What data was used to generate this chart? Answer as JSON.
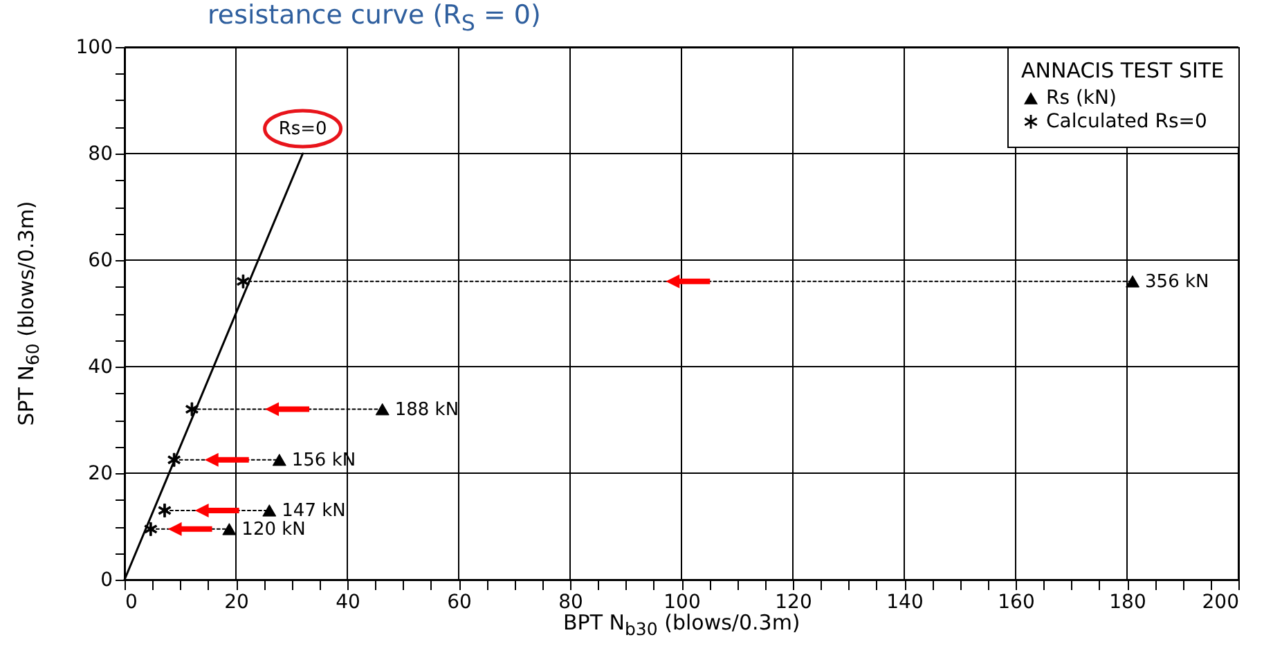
{
  "chart_data": {
    "type": "scatter",
    "title": "resistance curve (R$_{S}$ = 0)",
    "xlabel": "BPT N$_{b30}$ (blows/0.3m)",
    "ylabel": "SPT N$_{60}$ (blows/0.3m)",
    "legend_title": "ANNACIS TEST SITE",
    "xlim": [
      0,
      200
    ],
    "ylim": [
      0,
      100
    ],
    "xticks": [
      0,
      {
        "value": 5,
        "label": null
      },
      {
        "value": 10,
        "label": null
      },
      {
        "value": 15,
        "label": null
      },
      20,
      {
        "value": 25,
        "label": null
      },
      {
        "value": 30,
        "label": null
      },
      {
        "value": 35,
        "label": null
      },
      40,
      {
        "value": 45,
        "label": null
      },
      {
        "value": 50,
        "label": null
      },
      {
        "value": 55,
        "label": null
      },
      60,
      {
        "value": 65,
        "label": null
      },
      {
        "value": 70,
        "label": null
      },
      {
        "value": 75,
        "label": null
      },
      80,
      {
        "value": 85,
        "label": null
      },
      {
        "value": 90,
        "label": null
      },
      {
        "value": 95,
        "label": null
      },
      100,
      {
        "value": 105,
        "label": null
      },
      {
        "value": 110,
        "label": null
      },
      {
        "value": 115,
        "label": null
      },
      120,
      {
        "value": 125,
        "label": null
      },
      {
        "value": 130,
        "label": null
      },
      {
        "value": 135,
        "label": null
      },
      140,
      {
        "value": 145,
        "label": null
      },
      {
        "value": 150,
        "label": null
      },
      {
        "value": 155,
        "label": null
      },
      160,
      {
        "value": 165,
        "label": null
      },
      {
        "value": 170,
        "label": null
      },
      {
        "value": 175,
        "label": null
      },
      180,
      {
        "value": 185,
        "label": null
      },
      {
        "value": 190,
        "label": null
      },
      {
        "value": 195,
        "label": null
      },
      200
    ],
    "yticks": [
      0,
      {
        "value": 5,
        "label": null
      },
      {
        "value": 10,
        "label": null
      },
      {
        "value": 15,
        "label": null
      },
      20,
      {
        "value": 25,
        "label": null
      },
      {
        "value": 30,
        "label": null
      },
      {
        "value": 35,
        "label": null
      },
      40,
      {
        "value": 45,
        "label": null
      },
      {
        "value": 50,
        "label": null
      },
      {
        "value": 55,
        "label": null
      },
      60,
      {
        "value": 65,
        "label": null
      },
      {
        "value": 70,
        "label": null
      },
      {
        "value": 75,
        "label": null
      },
      80,
      {
        "value": 85,
        "label": null
      },
      {
        "value": 90,
        "label": null
      },
      {
        "value": 95,
        "label": null
      },
      100
    ],
    "grid": true,
    "legend": "top right",
    "annotations": [
      {
        "text": "Rs=0",
        "x": 32,
        "y": 80
      },
      {
        "text": "120 kN",
        "x": 18.8,
        "y": 9.5
      },
      {
        "text": "147 kN",
        "x": 26,
        "y": 13
      },
      {
        "text": "156 kN",
        "x": 27.8,
        "y": 22.5
      },
      {
        "text": "188 kN",
        "x": 46.3,
        "y": 32
      },
      {
        "text": "356 kN",
        "x": 181,
        "y": 56
      }
    ],
    "series": [
      {
        "type": "line",
        "color": "#000000",
        "line_style": "solid",
        "x": [
          0,
          32
        ],
        "values": [
          0,
          80
        ]
      },
      {
        "type": "line",
        "color": "#000000",
        "line_style": "dotted",
        "x": [
          4.7,
          18.8
        ],
        "values": [
          9.5,
          9.5
        ]
      },
      {
        "type": "line",
        "color": "#000000",
        "line_style": "dotted",
        "x": [
          7.2,
          26
        ],
        "values": [
          13,
          13
        ]
      },
      {
        "type": "line",
        "color": "#000000",
        "line_style": "dotted",
        "x": [
          8.9,
          27.8
        ],
        "values": [
          22.5,
          22.5
        ]
      },
      {
        "type": "line",
        "color": "#000000",
        "line_style": "dotted",
        "x": [
          12.1,
          46.3
        ],
        "values": [
          32,
          32
        ]
      },
      {
        "type": "line",
        "color": "#000000",
        "line_style": "dotted",
        "x": [
          21.3,
          181
        ],
        "values": [
          56,
          56
        ]
      },
      {
        "name": "Rs (kN)",
        "marker": "triangle",
        "color": "#000000",
        "x": [
          18.8,
          26,
          27.8,
          46.3,
          181
        ],
        "values": [
          9.5,
          13,
          22.5,
          32,
          56
        ]
      },
      {
        "name": "Calculated Rs=0",
        "marker": "cross",
        "color": "#000000",
        "x": [
          4.7,
          7.2,
          8.9,
          12.1,
          21.3
        ],
        "values": [
          9.5,
          13,
          22.5,
          32,
          56
        ]
      }
    ]
  }
}
